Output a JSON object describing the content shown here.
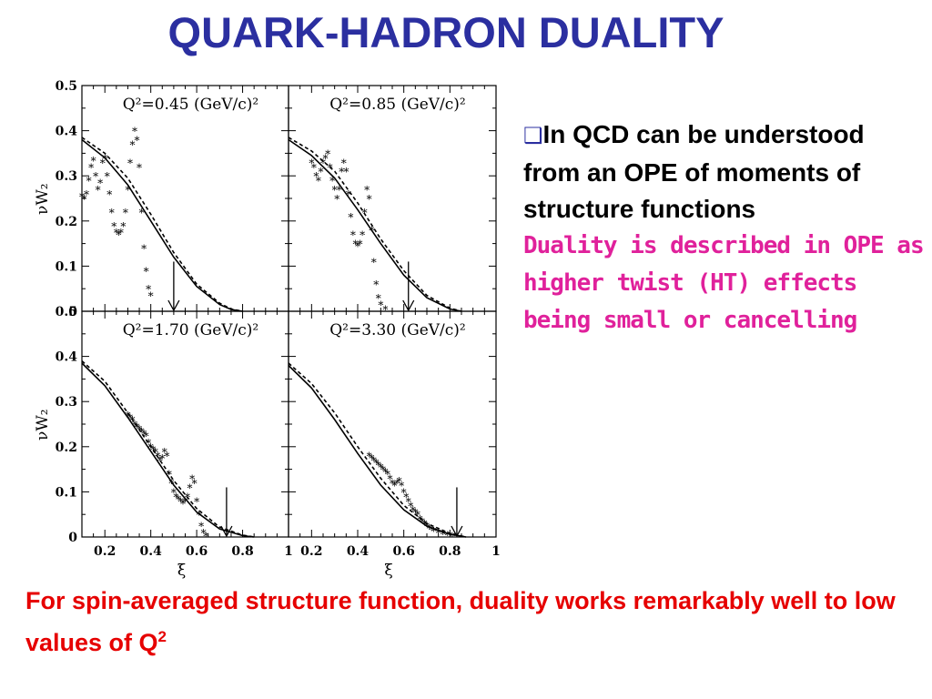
{
  "slide": {
    "title": "QUARK-HADRON DUALITY",
    "bullet": {
      "icon": "hollow-square-bullet-icon",
      "text_bold": "In QCD   can be understood from an OPE of moments of structure functions",
      "text_colored": "Duality is described in OPE as higher twist (HT) effects being small or cancelling",
      "colored_color": "#e0219b"
    },
    "bottom_text": "For spin-averaged structure function,  duality works remarkably well to low values of Q",
    "bottom_sup": "2",
    "bottom_color": "#e60000",
    "title_color": "#2b2fa0"
  },
  "chart_data": [
    {
      "type": "scatter",
      "title": "Q²=0.45 (GeV/c)²",
      "ylabel": "νW₂",
      "xlabel": "",
      "xlim": [
        0.1,
        1.0
      ],
      "ylim": [
        0,
        0.5
      ],
      "xticks": [],
      "yticks": [
        "0",
        "0.1",
        "0.2",
        "0.3",
        "0.4",
        "0.5"
      ],
      "arrow_x": 0.5,
      "series": [
        {
          "style": "stars",
          "points": [
            [
              0.1,
              0.255
            ],
            [
              0.11,
              0.25
            ],
            [
              0.12,
              0.26
            ],
            [
              0.13,
              0.29
            ],
            [
              0.14,
              0.32
            ],
            [
              0.15,
              0.335
            ],
            [
              0.16,
              0.3
            ],
            [
              0.17,
              0.27
            ],
            [
              0.18,
              0.285
            ],
            [
              0.19,
              0.33
            ],
            [
              0.2,
              0.34
            ],
            [
              0.21,
              0.3
            ],
            [
              0.22,
              0.26
            ],
            [
              0.23,
              0.22
            ],
            [
              0.24,
              0.19
            ],
            [
              0.25,
              0.175
            ],
            [
              0.26,
              0.17
            ],
            [
              0.27,
              0.175
            ],
            [
              0.28,
              0.19
            ],
            [
              0.29,
              0.22
            ],
            [
              0.3,
              0.27
            ],
            [
              0.31,
              0.33
            ],
            [
              0.32,
              0.37
            ],
            [
              0.33,
              0.4
            ],
            [
              0.34,
              0.38
            ],
            [
              0.35,
              0.32
            ],
            [
              0.36,
              0.22
            ],
            [
              0.37,
              0.14
            ],
            [
              0.38,
              0.09
            ],
            [
              0.39,
              0.05
            ],
            [
              0.4,
              0.035
            ]
          ]
        },
        {
          "style": "solid",
          "points": [
            [
              0.1,
              0.38
            ],
            [
              0.2,
              0.34
            ],
            [
              0.3,
              0.28
            ],
            [
              0.4,
              0.2
            ],
            [
              0.5,
              0.12
            ],
            [
              0.6,
              0.055
            ],
            [
              0.7,
              0.015
            ],
            [
              0.75,
              0.004
            ],
            [
              0.8,
              0.0
            ]
          ]
        },
        {
          "style": "dashed",
          "points": [
            [
              0.1,
              0.385
            ],
            [
              0.2,
              0.35
            ],
            [
              0.3,
              0.295
            ],
            [
              0.4,
              0.215
            ],
            [
              0.5,
              0.13
            ],
            [
              0.6,
              0.06
            ],
            [
              0.7,
              0.018
            ],
            [
              0.75,
              0.005
            ],
            [
              0.8,
              0.0
            ]
          ]
        }
      ]
    },
    {
      "type": "scatter",
      "title": "Q²=0.85 (GeV/c)²",
      "ylabel": "",
      "xlabel": "",
      "xlim": [
        0.1,
        1.0
      ],
      "ylim": [
        0,
        0.5
      ],
      "xticks": [],
      "yticks": [],
      "arrow_x": 0.62,
      "series": [
        {
          "style": "stars",
          "points": [
            [
              0.2,
              0.33
            ],
            [
              0.21,
              0.32
            ],
            [
              0.22,
              0.3
            ],
            [
              0.23,
              0.29
            ],
            [
              0.24,
              0.31
            ],
            [
              0.25,
              0.33
            ],
            [
              0.26,
              0.34
            ],
            [
              0.27,
              0.35
            ],
            [
              0.28,
              0.32
            ],
            [
              0.29,
              0.29
            ],
            [
              0.3,
              0.27
            ],
            [
              0.31,
              0.25
            ],
            [
              0.32,
              0.27
            ],
            [
              0.33,
              0.31
            ],
            [
              0.34,
              0.33
            ],
            [
              0.35,
              0.31
            ],
            [
              0.36,
              0.26
            ],
            [
              0.37,
              0.21
            ],
            [
              0.38,
              0.17
            ],
            [
              0.39,
              0.15
            ],
            [
              0.4,
              0.145
            ],
            [
              0.41,
              0.15
            ],
            [
              0.42,
              0.17
            ],
            [
              0.43,
              0.22
            ],
            [
              0.44,
              0.27
            ],
            [
              0.45,
              0.25
            ],
            [
              0.46,
              0.18
            ],
            [
              0.47,
              0.11
            ],
            [
              0.48,
              0.06
            ],
            [
              0.49,
              0.03
            ],
            [
              0.5,
              0.015
            ],
            [
              0.52,
              0.005
            ]
          ]
        },
        {
          "style": "solid",
          "points": [
            [
              0.1,
              0.38
            ],
            [
              0.2,
              0.345
            ],
            [
              0.3,
              0.295
            ],
            [
              0.4,
              0.225
            ],
            [
              0.5,
              0.15
            ],
            [
              0.6,
              0.08
            ],
            [
              0.7,
              0.03
            ],
            [
              0.8,
              0.005
            ],
            [
              0.85,
              0.0
            ]
          ]
        },
        {
          "style": "dashed",
          "points": [
            [
              0.1,
              0.385
            ],
            [
              0.2,
              0.355
            ],
            [
              0.3,
              0.31
            ],
            [
              0.4,
              0.24
            ],
            [
              0.5,
              0.16
            ],
            [
              0.6,
              0.09
            ],
            [
              0.7,
              0.035
            ],
            [
              0.8,
              0.007
            ],
            [
              0.85,
              0.0
            ]
          ]
        }
      ]
    },
    {
      "type": "scatter",
      "title": "Q²=1.70 (GeV/c)²",
      "ylabel": "νW₂",
      "xlabel": "ξ",
      "xlim": [
        0.1,
        1.0
      ],
      "ylim": [
        0,
        0.5
      ],
      "xticks": [
        "0.2",
        "0.4",
        "0.6",
        "0.8",
        "1"
      ],
      "yticks": [
        "0",
        "0.1",
        "0.2",
        "0.3",
        "0.4",
        "0.5"
      ],
      "arrow_x": 0.73,
      "series": [
        {
          "style": "stars",
          "points": [
            [
              0.3,
              0.27
            ],
            [
              0.31,
              0.265
            ],
            [
              0.32,
              0.26
            ],
            [
              0.33,
              0.25
            ],
            [
              0.34,
              0.245
            ],
            [
              0.35,
              0.24
            ],
            [
              0.36,
              0.235
            ],
            [
              0.37,
              0.23
            ],
            [
              0.38,
              0.225
            ],
            [
              0.39,
              0.21
            ],
            [
              0.4,
              0.2
            ],
            [
              0.41,
              0.195
            ],
            [
              0.42,
              0.19
            ],
            [
              0.43,
              0.18
            ],
            [
              0.44,
              0.17
            ],
            [
              0.45,
              0.175
            ],
            [
              0.46,
              0.19
            ],
            [
              0.47,
              0.18
            ],
            [
              0.48,
              0.14
            ],
            [
              0.49,
              0.12
            ],
            [
              0.5,
              0.1
            ],
            [
              0.51,
              0.09
            ],
            [
              0.52,
              0.085
            ],
            [
              0.53,
              0.08
            ],
            [
              0.54,
              0.075
            ],
            [
              0.55,
              0.08
            ],
            [
              0.56,
              0.09
            ],
            [
              0.57,
              0.11
            ],
            [
              0.58,
              0.13
            ],
            [
              0.59,
              0.12
            ],
            [
              0.6,
              0.08
            ],
            [
              0.61,
              0.05
            ],
            [
              0.62,
              0.025
            ],
            [
              0.63,
              0.01
            ],
            [
              0.64,
              0.003
            ]
          ]
        },
        {
          "style": "solid",
          "points": [
            [
              0.1,
              0.385
            ],
            [
              0.2,
              0.335
            ],
            [
              0.3,
              0.265
            ],
            [
              0.4,
              0.19
            ],
            [
              0.5,
              0.115
            ],
            [
              0.6,
              0.055
            ],
            [
              0.7,
              0.018
            ],
            [
              0.8,
              0.003
            ],
            [
              0.85,
              0.0
            ]
          ]
        },
        {
          "style": "dashed",
          "points": [
            [
              0.1,
              0.39
            ],
            [
              0.2,
              0.345
            ],
            [
              0.3,
              0.275
            ],
            [
              0.4,
              0.2
            ],
            [
              0.5,
              0.125
            ],
            [
              0.6,
              0.063
            ],
            [
              0.7,
              0.022
            ],
            [
              0.8,
              0.004
            ],
            [
              0.85,
              0.0
            ]
          ]
        }
      ]
    },
    {
      "type": "scatter",
      "title": "Q²=3.30 (GeV/c)²",
      "ylabel": "",
      "xlabel": "ξ",
      "xlim": [
        0.1,
        1.0
      ],
      "ylim": [
        0,
        0.5
      ],
      "xticks": [
        "0.2",
        "0.4",
        "0.6",
        "0.8",
        "1"
      ],
      "yticks": [],
      "arrow_x": 0.83,
      "series": [
        {
          "style": "stars",
          "points": [
            [
              0.45,
              0.18
            ],
            [
              0.46,
              0.175
            ],
            [
              0.47,
              0.17
            ],
            [
              0.48,
              0.165
            ],
            [
              0.49,
              0.16
            ],
            [
              0.5,
              0.155
            ],
            [
              0.51,
              0.15
            ],
            [
              0.52,
              0.145
            ],
            [
              0.53,
              0.14
            ],
            [
              0.54,
              0.13
            ],
            [
              0.55,
              0.12
            ],
            [
              0.56,
              0.115
            ],
            [
              0.57,
              0.12
            ],
            [
              0.58,
              0.125
            ],
            [
              0.59,
              0.115
            ],
            [
              0.6,
              0.1
            ],
            [
              0.61,
              0.09
            ],
            [
              0.62,
              0.08
            ],
            [
              0.63,
              0.07
            ],
            [
              0.64,
              0.06
            ],
            [
              0.65,
              0.055
            ],
            [
              0.66,
              0.05
            ],
            [
              0.67,
              0.04
            ],
            [
              0.68,
              0.035
            ],
            [
              0.69,
              0.03
            ],
            [
              0.7,
              0.025
            ],
            [
              0.71,
              0.02
            ],
            [
              0.72,
              0.017
            ],
            [
              0.73,
              0.014
            ],
            [
              0.75,
              0.01
            ],
            [
              0.77,
              0.007
            ],
            [
              0.79,
              0.005
            ],
            [
              0.81,
              0.003
            ]
          ]
        },
        {
          "style": "solid",
          "points": [
            [
              0.1,
              0.38
            ],
            [
              0.2,
              0.33
            ],
            [
              0.3,
              0.26
            ],
            [
              0.4,
              0.185
            ],
            [
              0.5,
              0.115
            ],
            [
              0.6,
              0.06
            ],
            [
              0.7,
              0.024
            ],
            [
              0.8,
              0.006
            ],
            [
              0.87,
              0.0
            ]
          ]
        },
        {
          "style": "dashed",
          "points": [
            [
              0.1,
              0.385
            ],
            [
              0.2,
              0.34
            ],
            [
              0.3,
              0.275
            ],
            [
              0.4,
              0.2
            ],
            [
              0.5,
              0.13
            ],
            [
              0.6,
              0.07
            ],
            [
              0.7,
              0.03
            ],
            [
              0.8,
              0.008
            ],
            [
              0.87,
              0.0
            ]
          ]
        }
      ]
    }
  ]
}
